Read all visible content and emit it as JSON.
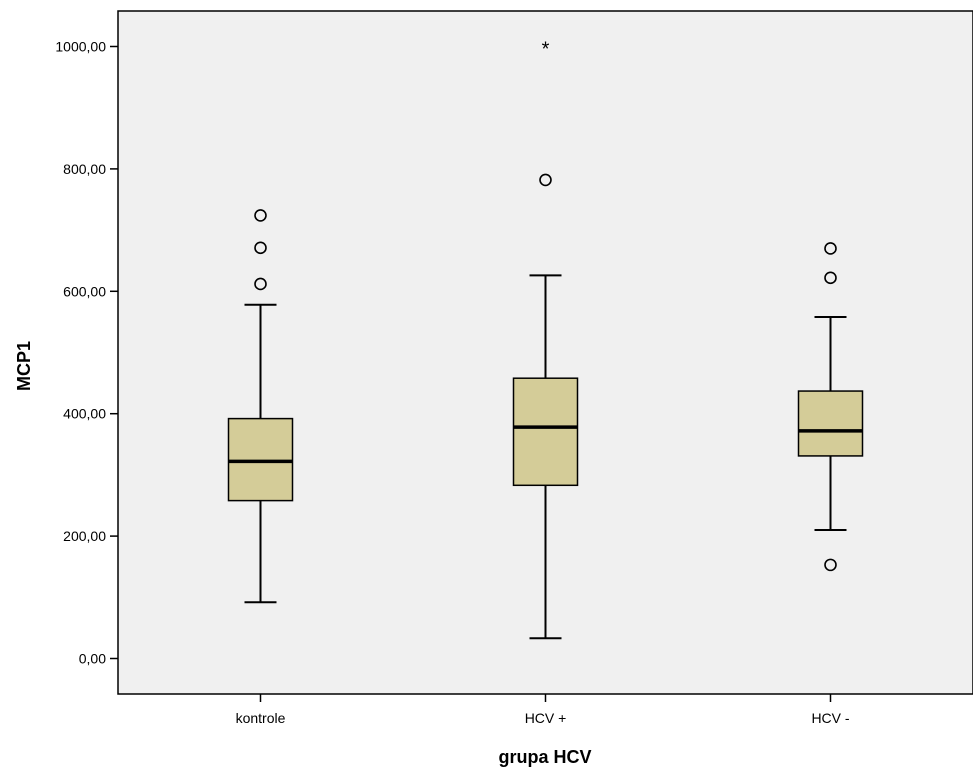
{
  "chart_data": {
    "type": "boxplot",
    "title": "",
    "xlabel": "grupa HCV",
    "ylabel": "MCP1",
    "ylim": [
      -58,
      1058
    ],
    "yticks": [
      0,
      200,
      400,
      600,
      800,
      1000
    ],
    "ytick_labels": [
      "0,00",
      "200,00",
      "400,00",
      "600,00",
      "800,00",
      "1000,00"
    ],
    "grid": false,
    "colors": {
      "plot_bg": "#f0f0f0",
      "box_fill": "#d4cc98",
      "stroke": "#000000"
    },
    "categories": [
      "kontrole",
      "HCV +",
      "HCV -"
    ],
    "boxes": [
      {
        "category": "kontrole",
        "whisker_low": 92,
        "q1": 258,
        "median": 322,
        "q3": 392,
        "whisker_high": 578,
        "outliers": [
          612,
          671,
          724
        ],
        "extremes": []
      },
      {
        "category": "HCV +",
        "whisker_low": 33,
        "q1": 283,
        "median": 378,
        "q3": 458,
        "whisker_high": 626,
        "outliers": [
          782
        ],
        "extremes": [
          1000
        ]
      },
      {
        "category": "HCV -",
        "whisker_low": 210,
        "q1": 331,
        "median": 372,
        "q3": 437,
        "whisker_high": 558,
        "outliers": [
          153,
          622,
          670
        ],
        "extremes": []
      }
    ]
  }
}
